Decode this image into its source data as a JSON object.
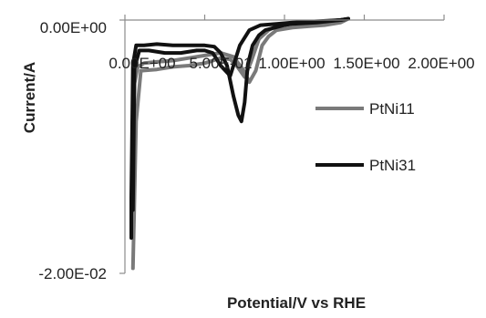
{
  "chart_data": {
    "type": "line",
    "title": "",
    "xlabel": "Potential/V vs RHE",
    "ylabel": "Current/A",
    "x_tick_labels": [
      "0.00E+00",
      "5.00E-01",
      "1.00E+00",
      "1.50E+00",
      "2.00E+00"
    ],
    "y_tick_labels": [
      "0.00E+00",
      "-2.00E-02"
    ],
    "xlim": [
      0.0,
      2.0
    ],
    "ylim": [
      -0.02,
      0.0
    ],
    "grid": false,
    "legend_position": "right",
    "series": [
      {
        "name": "PtNi11",
        "color": "#7a7a7a",
        "segments": [
          {
            "x": [
              0.05,
              0.05,
              0.06,
              0.08,
              0.12,
              0.2,
              0.3,
              0.4,
              0.5,
              0.6,
              0.68,
              0.74,
              0.78,
              0.82,
              0.86,
              0.9,
              0.95,
              1.05,
              1.15,
              1.25,
              1.35,
              1.4
            ],
            "y": [
              -0.0155,
              -0.0125,
              -0.005,
              -0.0037,
              -0.0034,
              -0.0033,
              -0.0032,
              -0.003,
              -0.0028,
              -0.0026,
              -0.0029,
              -0.0039,
              -0.0049,
              -0.004,
              -0.002,
              -0.0013,
              -0.0008,
              -0.0006,
              -0.0005,
              -0.0004,
              -0.0002,
              0.0001
            ]
          },
          {
            "x": [
              0.05,
              0.07,
              0.1,
              0.2,
              0.3,
              0.4,
              0.5,
              0.6,
              0.66,
              0.7,
              0.75,
              0.79,
              0.84,
              0.9,
              0.96,
              1.05,
              1.15,
              1.25,
              1.35,
              1.4
            ],
            "y": [
              -0.0196,
              -0.008,
              -0.004,
              -0.0039,
              -0.0037,
              -0.0036,
              -0.0034,
              -0.003,
              -0.0031,
              -0.0036,
              -0.0045,
              -0.0033,
              -0.0015,
              -0.0008,
              -0.0004,
              -0.0003,
              -0.0002,
              -0.0001,
              0.0,
              0.0001
            ]
          }
        ]
      },
      {
        "name": "PtNi31",
        "color": "#111111",
        "segments": [
          {
            "x": [
              0.04,
              0.04,
              0.05,
              0.07,
              0.12,
              0.2,
              0.3,
              0.4,
              0.5,
              0.56,
              0.6,
              0.64,
              0.68,
              0.71,
              0.73,
              0.75,
              0.77,
              0.8,
              0.84,
              0.88,
              0.94,
              1.0,
              1.05,
              1.2,
              1.35,
              1.4
            ],
            "y": [
              -0.0172,
              -0.014,
              -0.0035,
              -0.002,
              -0.002,
              -0.0019,
              -0.002,
              -0.002,
              -0.002,
              -0.0021,
              -0.0026,
              -0.0036,
              -0.006,
              -0.0075,
              -0.008,
              -0.0065,
              -0.0035,
              -0.002,
              -0.0012,
              -0.0008,
              -0.0006,
              -0.0004,
              -0.0003,
              -0.0002,
              0.0,
              0.0001
            ]
          },
          {
            "x": [
              0.05,
              0.06,
              0.09,
              0.15,
              0.25,
              0.35,
              0.45,
              0.5,
              0.55,
              0.6,
              0.66,
              0.72,
              0.78,
              0.85,
              0.95,
              1.05,
              1.2,
              1.35,
              1.4
            ],
            "y": [
              -0.015,
              -0.0038,
              -0.0024,
              -0.0024,
              -0.0026,
              -0.0026,
              -0.0024,
              -0.0024,
              -0.0026,
              -0.0036,
              -0.0044,
              -0.002,
              -0.0008,
              -0.0004,
              -0.0003,
              -0.0002,
              -0.0001,
              0.0,
              0.0001
            ]
          }
        ]
      }
    ]
  }
}
